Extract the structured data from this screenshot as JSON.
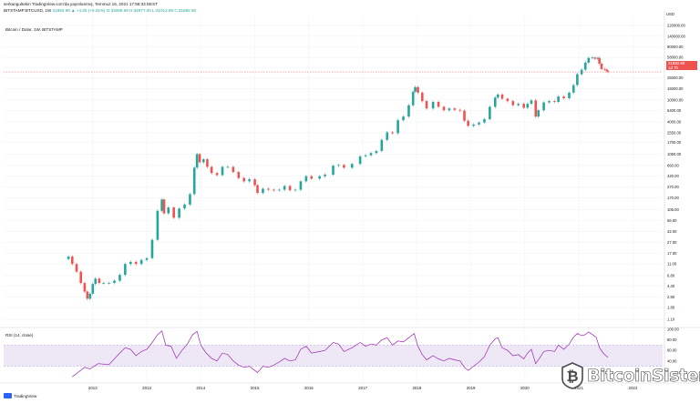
{
  "header": {
    "line1": "serkangultekin TradingView.com'da yayınlanmış, Temmuz 16, 2021 17:58:33 EEST",
    "line2_symbol": "BITSTAMP:BTCUSD, 1W",
    "line2_values": "31892.90 ▲ +4.25 (+0.01%) O:33086.68 H:34977.00 L:31012.96 C:31892.90"
  },
  "panel_titles": {
    "price": "Bitcoin / Dolar, 1W, BITSTAMP",
    "rsi": "RSI (14, close)"
  },
  "price_tag": {
    "value": "31892.90",
    "sub": "1d 7h"
  },
  "branding": {
    "tradingview": "TradingView",
    "watermark": "BitcoinSistemi"
  },
  "colors": {
    "up": "#26a69a",
    "down": "#ef5350",
    "rsi_line": "#9c27b0",
    "rsi_band": "#ede7f6",
    "grid": "#f0f3fa",
    "axis_text": "#131722"
  },
  "chart_data": [
    {
      "type": "candlestick",
      "title": "Bitcoin / Dolar, 1W, BITSTAMP",
      "scale": "log",
      "currency": "USD",
      "x_ticks": [
        "2012",
        "2013",
        "2014",
        "2015",
        "2016",
        "2017",
        "2018",
        "2019",
        "2020",
        "2021",
        "2022"
      ],
      "x_tick_years": [
        2012,
        2013,
        2014,
        2015,
        2016,
        2017,
        2018,
        2019,
        2020,
        2021,
        2022
      ],
      "xlim_years": [
        2010.35,
        2022.55
      ],
      "y_ticks": [
        "220000.00",
        "140000.00",
        "90000.00",
        "58000.00",
        "38000.00",
        "25000.00",
        "16000.00",
        "10000.00",
        "6400.00",
        "4000.00",
        "2550.00",
        "1700.00",
        "1050.00",
        "660.00",
        "420.00",
        "270.00",
        "170.00",
        "105.00",
        "66.00",
        "42.00",
        "27.00",
        "17.00",
        "11.00",
        "6.80",
        "4.40",
        "2.80",
        "1.80",
        "1.10"
      ],
      "y_unit_label": "USD",
      "ylim": [
        0.85,
        320000
      ],
      "last_price": 31892.9,
      "series": [
        {
          "values": [
            [
              2011.55,
              15
            ],
            [
              2011.62,
              11
            ],
            [
              2011.7,
              8
            ],
            [
              2011.78,
              5
            ],
            [
              2011.85,
              3.5
            ],
            [
              2011.9,
              2.6
            ],
            [
              2011.95,
              3.2
            ],
            [
              2012.0,
              4.8
            ],
            [
              2012.05,
              6
            ],
            [
              2012.12,
              5
            ],
            [
              2012.2,
              5
            ],
            [
              2012.3,
              5
            ],
            [
              2012.4,
              5.5
            ],
            [
              2012.5,
              7
            ],
            [
              2012.6,
              11
            ],
            [
              2012.7,
              12
            ],
            [
              2012.8,
              11
            ],
            [
              2012.9,
              13
            ],
            [
              2013.0,
              14
            ],
            [
              2013.1,
              30
            ],
            [
              2013.2,
              100
            ],
            [
              2013.28,
              160
            ],
            [
              2013.32,
              90
            ],
            [
              2013.4,
              115
            ],
            [
              2013.5,
              75
            ],
            [
              2013.6,
              110
            ],
            [
              2013.7,
              130
            ],
            [
              2013.8,
              200
            ],
            [
              2013.88,
              600
            ],
            [
              2013.93,
              1050
            ],
            [
              2013.98,
              750
            ],
            [
              2014.05,
              850
            ],
            [
              2014.12,
              620
            ],
            [
              2014.2,
              480
            ],
            [
              2014.3,
              440
            ],
            [
              2014.4,
              620
            ],
            [
              2014.5,
              620
            ],
            [
              2014.6,
              500
            ],
            [
              2014.7,
              390
            ],
            [
              2014.8,
              340
            ],
            [
              2014.9,
              370
            ],
            [
              2015.0,
              290
            ],
            [
              2015.05,
              210
            ],
            [
              2015.15,
              250
            ],
            [
              2015.25,
              240
            ],
            [
              2015.35,
              235
            ],
            [
              2015.45,
              240
            ],
            [
              2015.55,
              280
            ],
            [
              2015.65,
              235
            ],
            [
              2015.75,
              240
            ],
            [
              2015.85,
              340
            ],
            [
              2015.95,
              420
            ],
            [
              2016.05,
              380
            ],
            [
              2016.2,
              420
            ],
            [
              2016.3,
              450
            ],
            [
              2016.45,
              650
            ],
            [
              2016.55,
              670
            ],
            [
              2016.65,
              600
            ],
            [
              2016.8,
              700
            ],
            [
              2016.95,
              960
            ],
            [
              2017.05,
              1000
            ],
            [
              2017.15,
              1100
            ],
            [
              2017.25,
              1200
            ],
            [
              2017.35,
              1900
            ],
            [
              2017.45,
              2600
            ],
            [
              2017.55,
              2500
            ],
            [
              2017.65,
              4300
            ],
            [
              2017.75,
              5000
            ],
            [
              2017.85,
              8000
            ],
            [
              2017.93,
              14000
            ],
            [
              2017.97,
              17000
            ],
            [
              2018.02,
              13500
            ],
            [
              2018.1,
              9500
            ],
            [
              2018.18,
              7000
            ],
            [
              2018.3,
              9200
            ],
            [
              2018.4,
              7500
            ],
            [
              2018.5,
              6500
            ],
            [
              2018.6,
              7000
            ],
            [
              2018.7,
              6600
            ],
            [
              2018.8,
              6400
            ],
            [
              2018.88,
              4200
            ],
            [
              2018.95,
              3400
            ],
            [
              2019.05,
              3600
            ],
            [
              2019.15,
              3900
            ],
            [
              2019.25,
              4500
            ],
            [
              2019.35,
              7500
            ],
            [
              2019.45,
              11000
            ],
            [
              2019.5,
              12500
            ],
            [
              2019.58,
              10500
            ],
            [
              2019.68,
              9500
            ],
            [
              2019.78,
              8000
            ],
            [
              2019.88,
              8500
            ],
            [
              2019.98,
              7200
            ],
            [
              2020.05,
              8500
            ],
            [
              2020.12,
              9800
            ],
            [
              2020.2,
              5000
            ],
            [
              2020.25,
              6500
            ],
            [
              2020.35,
              9000
            ],
            [
              2020.45,
              9500
            ],
            [
              2020.55,
              9200
            ],
            [
              2020.62,
              11500
            ],
            [
              2020.72,
              10700
            ],
            [
              2020.82,
              13500
            ],
            [
              2020.9,
              18500
            ],
            [
              2020.97,
              29000
            ],
            [
              2021.05,
              35000
            ],
            [
              2021.12,
              47000
            ],
            [
              2021.18,
              57000
            ],
            [
              2021.25,
              58000
            ],
            [
              2021.3,
              55000
            ],
            [
              2021.35,
              57000
            ],
            [
              2021.38,
              45000
            ],
            [
              2021.42,
              36000
            ],
            [
              2021.48,
              35000
            ],
            [
              2021.52,
              33000
            ],
            [
              2021.54,
              31892.9
            ]
          ]
        }
      ]
    },
    {
      "type": "line",
      "title": "RSI (14, close)",
      "y_ticks": [
        "100.00",
        "80.00",
        "60.00",
        "40.00"
      ],
      "ylim": [
        0,
        100
      ],
      "band": [
        30,
        70
      ],
      "series": [
        {
          "values": [
            [
              2011.62,
              10
            ],
            [
              2011.72,
              18
            ],
            [
              2011.85,
              28
            ],
            [
              2011.95,
              25
            ],
            [
              2012.1,
              35
            ],
            [
              2012.3,
              33
            ],
            [
              2012.5,
              55
            ],
            [
              2012.6,
              65
            ],
            [
              2012.7,
              62
            ],
            [
              2012.8,
              50
            ],
            [
              2012.9,
              58
            ],
            [
              2013.0,
              62
            ],
            [
              2013.1,
              75
            ],
            [
              2013.2,
              90
            ],
            [
              2013.28,
              97
            ],
            [
              2013.35,
              70
            ],
            [
              2013.45,
              68
            ],
            [
              2013.55,
              45
            ],
            [
              2013.65,
              60
            ],
            [
              2013.75,
              72
            ],
            [
              2013.85,
              90
            ],
            [
              2013.93,
              96
            ],
            [
              2014.0,
              70
            ],
            [
              2014.1,
              55
            ],
            [
              2014.2,
              45
            ],
            [
              2014.3,
              40
            ],
            [
              2014.4,
              55
            ],
            [
              2014.5,
              52
            ],
            [
              2014.6,
              40
            ],
            [
              2014.7,
              32
            ],
            [
              2014.8,
              28
            ],
            [
              2014.9,
              30
            ],
            [
              2015.0,
              22
            ],
            [
              2015.05,
              18
            ],
            [
              2015.15,
              30
            ],
            [
              2015.25,
              28
            ],
            [
              2015.35,
              32
            ],
            [
              2015.45,
              38
            ],
            [
              2015.55,
              45
            ],
            [
              2015.65,
              40
            ],
            [
              2015.75,
              42
            ],
            [
              2015.85,
              62
            ],
            [
              2015.95,
              68
            ],
            [
              2016.05,
              55
            ],
            [
              2016.2,
              58
            ],
            [
              2016.3,
              60
            ],
            [
              2016.45,
              75
            ],
            [
              2016.55,
              72
            ],
            [
              2016.65,
              58
            ],
            [
              2016.8,
              65
            ],
            [
              2016.95,
              75
            ],
            [
              2017.05,
              68
            ],
            [
              2017.15,
              72
            ],
            [
              2017.25,
              70
            ],
            [
              2017.35,
              80
            ],
            [
              2017.45,
              84
            ],
            [
              2017.55,
              70
            ],
            [
              2017.65,
              78
            ],
            [
              2017.75,
              76
            ],
            [
              2017.85,
              84
            ],
            [
              2017.95,
              92
            ],
            [
              2018.02,
              68
            ],
            [
              2018.1,
              52
            ],
            [
              2018.18,
              42
            ],
            [
              2018.3,
              50
            ],
            [
              2018.4,
              44
            ],
            [
              2018.5,
              40
            ],
            [
              2018.6,
              45
            ],
            [
              2018.7,
              42
            ],
            [
              2018.8,
              40
            ],
            [
              2018.88,
              28
            ],
            [
              2018.95,
              22
            ],
            [
              2019.05,
              30
            ],
            [
              2019.15,
              38
            ],
            [
              2019.25,
              48
            ],
            [
              2019.35,
              70
            ],
            [
              2019.45,
              82
            ],
            [
              2019.5,
              84
            ],
            [
              2019.58,
              65
            ],
            [
              2019.68,
              60
            ],
            [
              2019.78,
              50
            ],
            [
              2019.88,
              52
            ],
            [
              2019.98,
              44
            ],
            [
              2020.05,
              55
            ],
            [
              2020.12,
              62
            ],
            [
              2020.2,
              35
            ],
            [
              2020.25,
              42
            ],
            [
              2020.35,
              58
            ],
            [
              2020.45,
              60
            ],
            [
              2020.55,
              58
            ],
            [
              2020.62,
              70
            ],
            [
              2020.72,
              62
            ],
            [
              2020.82,
              72
            ],
            [
              2020.9,
              85
            ],
            [
              2020.97,
              92
            ],
            [
              2021.05,
              88
            ],
            [
              2021.12,
              90
            ],
            [
              2021.18,
              95
            ],
            [
              2021.25,
              90
            ],
            [
              2021.32,
              85
            ],
            [
              2021.38,
              65
            ],
            [
              2021.45,
              55
            ],
            [
              2021.5,
              50
            ],
            [
              2021.54,
              47
            ]
          ]
        }
      ]
    }
  ]
}
